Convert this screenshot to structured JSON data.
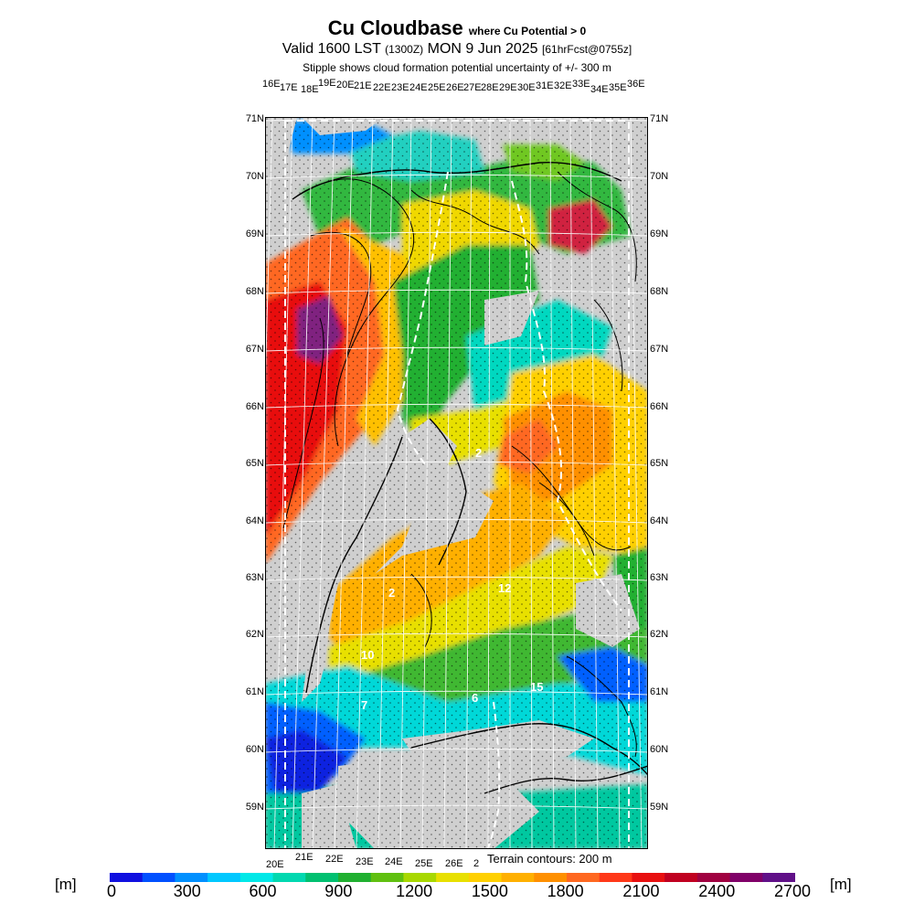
{
  "title": {
    "main": "Cu Cloudbase",
    "qualifier": "where Cu Potential > 0",
    "valid_prefix": "Valid 1600 LST",
    "valid_utc": "(1300Z)",
    "valid_date": "MON 9 Jun 2025",
    "forecast": "[61hrFcst@0755z]",
    "stipple_note": "Stipple shows cloud formation potential uncertainty of +/- 300 m"
  },
  "top_lon_labels": [
    "16E",
    "17E",
    "18E",
    "19E",
    "20E",
    "21E",
    "22E",
    "23E",
    "24E",
    "25E",
    "26E",
    "27E",
    "28E",
    "29E",
    "30E",
    "31E",
    "32E",
    "33E",
    "34E",
    "35E",
    "36E"
  ],
  "lat_labels": [
    "71N",
    "70N",
    "69N",
    "68N",
    "67N",
    "66N",
    "65N",
    "64N",
    "63N",
    "62N",
    "61N",
    "60N",
    "59N"
  ],
  "bottom_lon_labels": [
    "20E",
    "21E",
    "22E",
    "23E",
    "24E",
    "25E",
    "26E",
    "2"
  ],
  "terrain_note": "Terrain contours: 200 m",
  "map_labels": [
    "2",
    "10",
    "12",
    "15",
    "6",
    "7",
    "2"
  ],
  "colorbar": {
    "unit_left": "[m]",
    "unit_right": "[m]",
    "ticks": [
      "0",
      "300",
      "600",
      "900",
      "1200",
      "1500",
      "1800",
      "2100",
      "2400",
      "2700"
    ],
    "colors": [
      "#1010e0",
      "#0050ff",
      "#0090ff",
      "#00c8ff",
      "#00e8e8",
      "#00d8b0",
      "#00c070",
      "#20b030",
      "#60c010",
      "#a8d800",
      "#e8e000",
      "#ffd000",
      "#ffb000",
      "#ff9000",
      "#ff6820",
      "#ff3818",
      "#e81010",
      "#c00020",
      "#a00040",
      "#800068",
      "#601088"
    ]
  },
  "colors": {
    "no_data": "#cfcfcf",
    "sea": "#cfcfcf",
    "grid": "#ffffff",
    "border": "#ffffff",
    "frame": "#000000"
  }
}
